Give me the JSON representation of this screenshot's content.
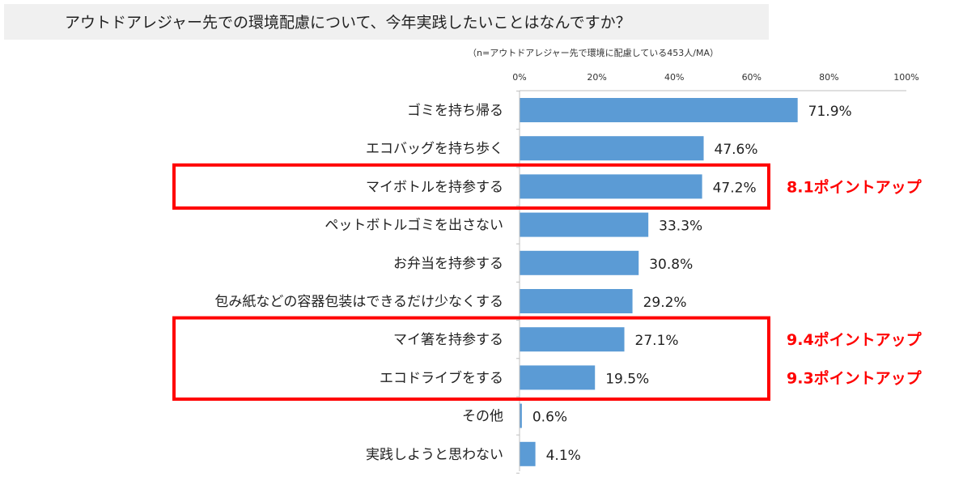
{
  "header": {
    "title": "アウトドアレジャー先での環境配慮について、今年実践したいことはなんですか？",
    "sample_note": "（n=アウトドアレジャー先で環境に配慮している453人/MA）"
  },
  "chart_data": {
    "type": "bar",
    "orientation": "horizontal",
    "title": "アウトドアレジャー先での環境配慮について、今年実践したいことはなんですか？",
    "categories": [
      "ゴミを持ち帰る",
      "エコバッグを持ち歩く",
      "マイボトルを持参する",
      "ペットボトルゴミを出さない",
      "お弁当を持参する",
      "包み紙などの容器包装はできるだけ少なくする",
      "マイ箸を持参する",
      "エコドライブをする",
      "その他",
      "実践しようと思わない"
    ],
    "values": [
      71.9,
      47.6,
      47.2,
      33.3,
      30.8,
      29.2,
      27.1,
      19.5,
      0.6,
      4.1
    ],
    "value_labels": [
      "71.9%",
      "47.6%",
      "47.2%",
      "33.3%",
      "30.8%",
      "29.2%",
      "27.1%",
      "19.5%",
      "0.6%",
      "4.1%"
    ],
    "xlim": [
      0,
      100
    ],
    "x_ticks": [
      "0%",
      "20%",
      "40%",
      "60%",
      "80%",
      "100%"
    ],
    "tick_values": [
      0,
      20,
      40,
      60,
      80,
      100
    ],
    "grid": false,
    "bar_color": "#5b9bd5",
    "highlight_color": "#ff0000",
    "annotations": [
      {
        "category_index": 2,
        "text": "8.1ポイントアップ"
      },
      {
        "category_index": 6,
        "text": "9.4ポイントアップ"
      },
      {
        "category_index": 7,
        "text": "9.3ポイントアップ"
      }
    ],
    "highlight_groups": [
      [
        2,
        2
      ],
      [
        6,
        7
      ]
    ]
  }
}
